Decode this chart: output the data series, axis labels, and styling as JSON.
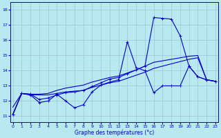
{
  "title": "Graphe des températures (°c)",
  "bg_color": "#b8e8f0",
  "grid_color": "#99bbcc",
  "line_color": "#0000cc",
  "x_ticks": [
    0,
    1,
    2,
    3,
    4,
    5,
    6,
    7,
    8,
    9,
    10,
    11,
    12,
    13,
    14,
    15,
    16,
    17,
    18,
    19,
    20,
    21,
    22,
    23
  ],
  "y_ticks": [
    11,
    12,
    13,
    14,
    15,
    16,
    17,
    18
  ],
  "xlim": [
    -0.3,
    23.3
  ],
  "ylim": [
    10.6,
    18.5
  ],
  "series": {
    "line_jagged1_x": [
      0,
      1,
      2,
      3,
      4,
      5,
      6,
      7,
      8,
      9,
      10,
      11,
      12,
      13,
      14,
      15,
      16,
      17,
      18,
      19,
      20,
      21,
      22,
      23
    ],
    "line_jagged1_y": [
      11.1,
      12.5,
      12.4,
      11.9,
      12.0,
      12.45,
      12.0,
      11.55,
      11.75,
      12.6,
      13.05,
      13.25,
      13.4,
      15.9,
      14.2,
      14.0,
      12.55,
      13.0,
      13.0,
      13.0,
      14.3,
      13.6,
      13.4,
      13.3
    ],
    "line_smooth_top_x": [
      0,
      1,
      2,
      3,
      4,
      5,
      6,
      7,
      8,
      9,
      10,
      11,
      12,
      13,
      14,
      15,
      16,
      17,
      18,
      19,
      20,
      21,
      22,
      23
    ],
    "line_smooth_top_y": [
      11.1,
      12.5,
      12.45,
      12.1,
      12.2,
      12.4,
      12.55,
      12.6,
      12.7,
      12.95,
      13.2,
      13.45,
      13.55,
      13.8,
      14.05,
      14.3,
      17.5,
      17.45,
      17.4,
      16.3,
      14.3,
      13.6,
      13.4,
      13.3
    ],
    "line_smooth_mid_x": [
      0,
      1,
      2,
      3,
      4,
      5,
      6,
      7,
      8,
      9,
      10,
      11,
      12,
      13,
      14,
      15,
      16,
      17,
      18,
      19,
      20,
      21,
      22,
      23
    ],
    "line_smooth_mid_y": [
      11.6,
      12.5,
      12.45,
      12.45,
      12.5,
      12.7,
      12.85,
      12.95,
      13.05,
      13.25,
      13.4,
      13.55,
      13.65,
      13.85,
      14.05,
      14.3,
      14.55,
      14.65,
      14.75,
      14.85,
      14.95,
      15.0,
      13.4,
      13.3
    ],
    "line_smooth_low_x": [
      0,
      1,
      2,
      3,
      4,
      5,
      6,
      7,
      8,
      9,
      10,
      11,
      12,
      13,
      14,
      15,
      16,
      17,
      18,
      19,
      20,
      21,
      22,
      23
    ],
    "line_smooth_low_y": [
      11.15,
      12.5,
      12.4,
      12.4,
      12.4,
      12.5,
      12.6,
      12.65,
      12.7,
      12.9,
      13.05,
      13.2,
      13.3,
      13.5,
      13.7,
      13.9,
      14.15,
      14.3,
      14.45,
      14.6,
      14.75,
      14.85,
      13.4,
      13.3
    ]
  }
}
